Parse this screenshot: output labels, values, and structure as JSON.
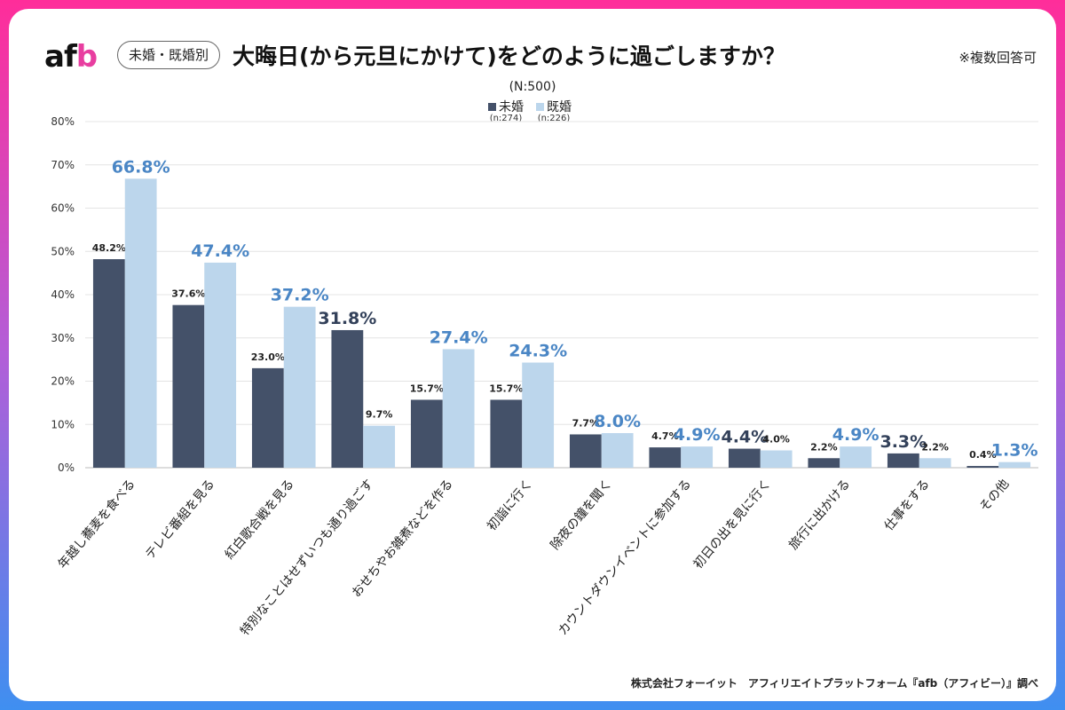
{
  "header": {
    "logo_main": "af",
    "logo_accent": "b",
    "badge": "未婚・既婚別",
    "title": "大晦日(から元旦にかけて)をどのように過ごしますか？",
    "note": "※複数回答可",
    "sample": "(N:500)"
  },
  "legend": [
    {
      "label": "未婚",
      "n": "(n:274)",
      "color": "#445169"
    },
    {
      "label": "既婚",
      "n": "(n:226)",
      "color": "#bcd6ec"
    }
  ],
  "footer": "株式会社フォーイット　アフィリエイトプラットフォーム『afb（アフィビー）』調べ",
  "chart_data": {
    "type": "bar",
    "categories": [
      "年越し蕎麦を食べる",
      "テレビ番組を見る",
      "紅白歌合戦を見る",
      "特別なことはせずいつも通り過ごす",
      "おせちやお雑煮などを作る",
      "初詣に行く",
      "除夜の鐘を聞く",
      "カウントダウンイベントに参加する",
      "初日の出を見に行く",
      "旅行に出かける",
      "仕事をする",
      "その他"
    ],
    "series": [
      {
        "name": "未婚",
        "values": [
          48.2,
          37.6,
          23.0,
          31.8,
          15.7,
          15.7,
          7.7,
          4.7,
          4.4,
          2.2,
          3.3,
          0.4
        ],
        "color": "#445169"
      },
      {
        "name": "既婚",
        "values": [
          66.8,
          47.4,
          37.2,
          9.7,
          27.4,
          24.3,
          8.0,
          4.9,
          4.0,
          4.9,
          2.2,
          1.3
        ],
        "color": "#bcd6ec"
      }
    ],
    "highlight_colors": {
      "未婚": "#33415a",
      "既婚": "#4a86c5"
    },
    "yticks": [
      "0%",
      "10%",
      "20%",
      "30%",
      "40%",
      "50%",
      "60%",
      "70%",
      "80%"
    ],
    "ylim": [
      0,
      80
    ],
    "grid": true
  }
}
